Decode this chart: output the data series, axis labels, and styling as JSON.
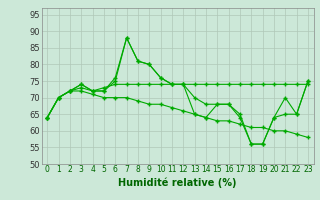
{
  "title": "",
  "xlabel": "Humidité relative (%)",
  "ylabel": "",
  "xlim": [
    -0.5,
    23.5
  ],
  "ylim": [
    50,
    97
  ],
  "yticks": [
    50,
    55,
    60,
    65,
    70,
    75,
    80,
    85,
    90,
    95
  ],
  "xticks": [
    0,
    1,
    2,
    3,
    4,
    5,
    6,
    7,
    8,
    9,
    10,
    11,
    12,
    13,
    14,
    15,
    16,
    17,
    18,
    19,
    20,
    21,
    22,
    23
  ],
  "bg_color": "#cce8d8",
  "grid_color": "#b0c8b8",
  "line_color": "#00aa00",
  "lines": [
    [
      64,
      70,
      72,
      73,
      72,
      72,
      76,
      88,
      81,
      80,
      76,
      74,
      74,
      65,
      64,
      68,
      68,
      64,
      56,
      56,
      64,
      65,
      65,
      75
    ],
    [
      64,
      70,
      72,
      74,
      72,
      73,
      74,
      74,
      74,
      74,
      74,
      74,
      74,
      74,
      74,
      74,
      74,
      74,
      74,
      74,
      74,
      74,
      74,
      74
    ],
    [
      64,
      70,
      72,
      72,
      71,
      70,
      70,
      70,
      69,
      68,
      68,
      67,
      66,
      65,
      64,
      63,
      63,
      62,
      61,
      61,
      60,
      60,
      59,
      58
    ],
    [
      64,
      70,
      72,
      74,
      72,
      72,
      75,
      88,
      81,
      80,
      76,
      74,
      74,
      70,
      68,
      68,
      68,
      65,
      56,
      56,
      64,
      70,
      65,
      75
    ]
  ]
}
